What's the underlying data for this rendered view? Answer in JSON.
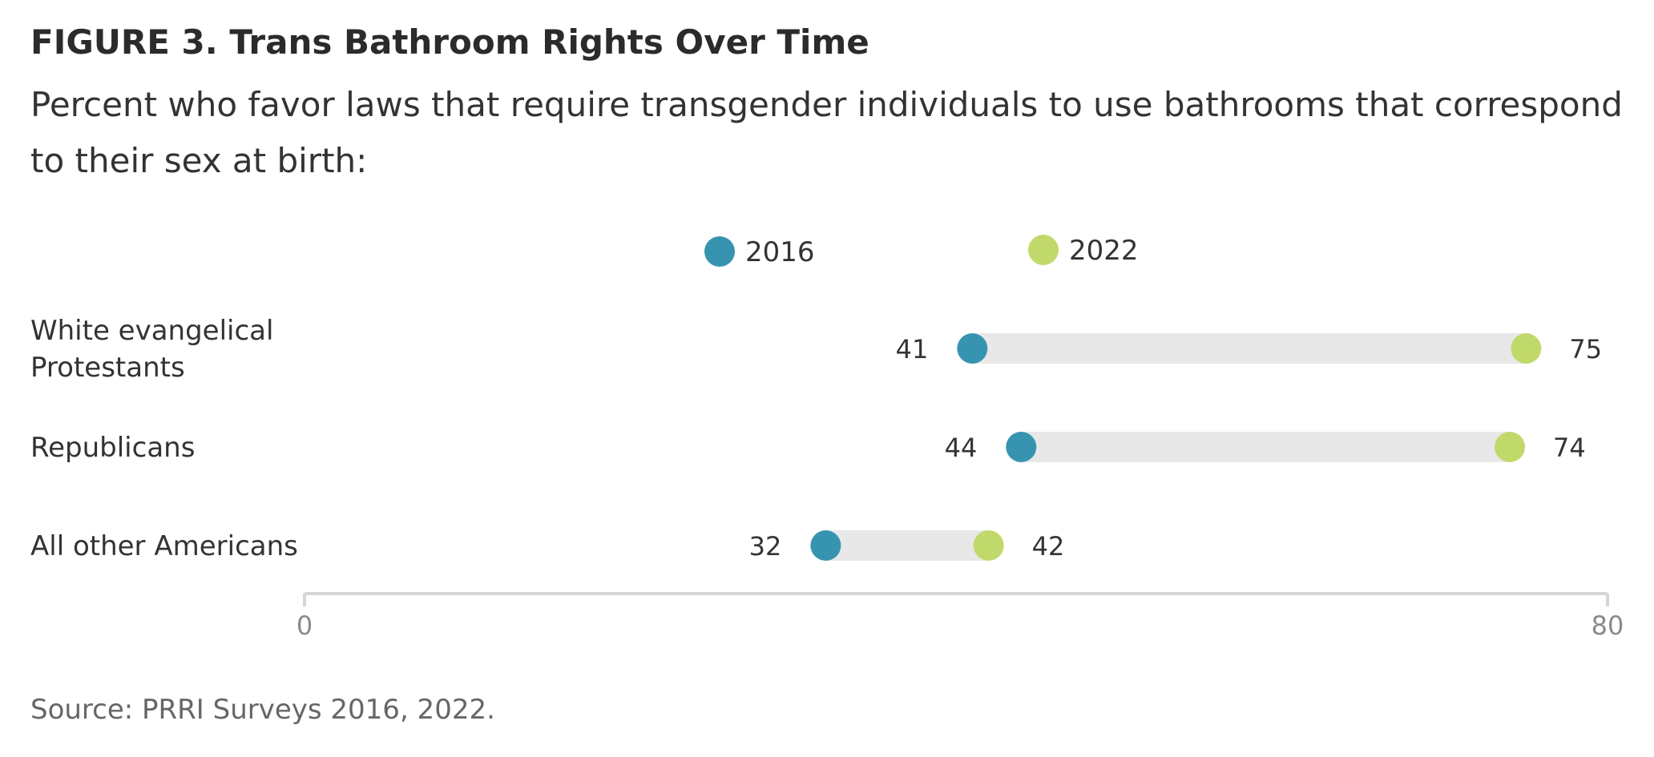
{
  "title": "FIGURE 3.  Trans Bathroom Rights Over Time",
  "subtitle": "Percent who favor laws that require transgender individuals to use bathrooms that correspond to their sex at birth:",
  "source": "Source: PRRI Surveys 2016, 2022.",
  "colors": {
    "series_2016": "#3794b0",
    "series_2022": "#c1d96a",
    "bar": "#e8e8e8",
    "axis": "#d6d6d6"
  },
  "chart_data": {
    "type": "dumbbell",
    "xlim": [
      0,
      80
    ],
    "x_ticks": [
      0,
      80
    ],
    "legend_position": "top",
    "series": [
      {
        "name": "2016",
        "color": "#3794b0"
      },
      {
        "name": "2022",
        "color": "#c1d96a"
      }
    ],
    "categories": [
      {
        "label_lines": [
          "White evangelical",
          "Protestants"
        ],
        "values": [
          41,
          75
        ]
      },
      {
        "label_lines": [
          "Republicans"
        ],
        "values": [
          44,
          74
        ]
      },
      {
        "label_lines": [
          "All other Americans"
        ],
        "values": [
          32,
          42
        ]
      }
    ]
  }
}
